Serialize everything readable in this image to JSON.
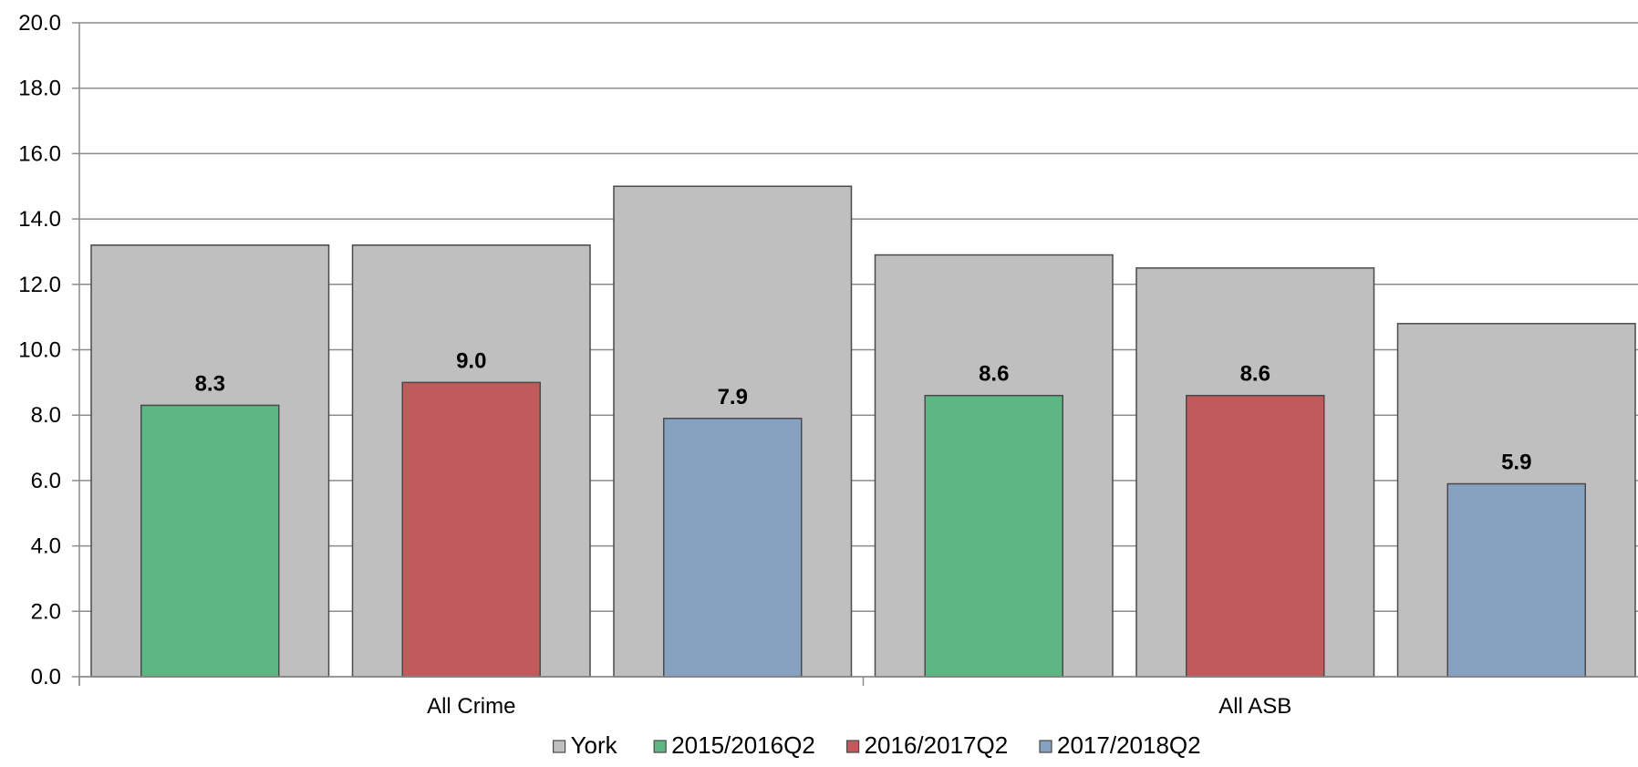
{
  "chart_data": {
    "type": "bar",
    "categories": [
      "All Crime",
      "All ASB"
    ],
    "periods": [
      "2015/2016Q2",
      "2016/2017Q2",
      "2017/2018Q2"
    ],
    "ylim": [
      0,
      20
    ],
    "yticks": [
      "0.0",
      "2.0",
      "4.0",
      "6.0",
      "8.0",
      "10.0",
      "12.0",
      "14.0",
      "16.0",
      "18.0",
      "20.0"
    ],
    "grid": true,
    "legend_position": "bottom",
    "series": [
      {
        "name": "York",
        "color": "#bfbfbf",
        "values": [
          [
            13.2,
            13.2,
            15.0
          ],
          [
            12.9,
            12.5,
            10.8
          ]
        ],
        "show_labels": false
      },
      {
        "name": "2015/2016Q2",
        "color": "#5db783",
        "values": [
          [
            8.3,
            null,
            null
          ],
          [
            8.6,
            null,
            null
          ]
        ],
        "show_labels": true
      },
      {
        "name": "2016/2017Q2",
        "color": "#c05a5b",
        "values": [
          [
            null,
            9.0,
            null
          ],
          [
            null,
            8.6,
            null
          ]
        ],
        "show_labels": true
      },
      {
        "name": "2017/2018Q2",
        "color": "#87a1c0",
        "values": [
          [
            null,
            null,
            7.9
          ],
          [
            null,
            null,
            5.9
          ]
        ],
        "show_labels": true
      }
    ]
  }
}
